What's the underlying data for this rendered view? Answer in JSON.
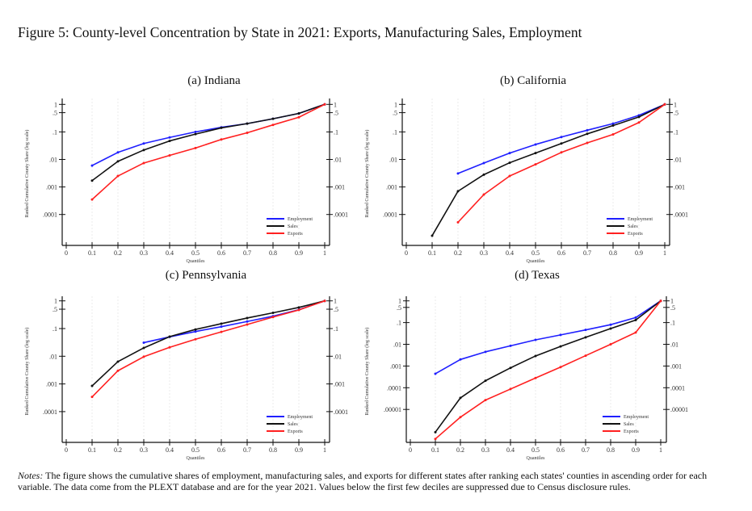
{
  "figure": {
    "title": "Figure 5: County-level Concentration by State in 2021: Exports, Manufacturing Sales, Employment",
    "notes_label": "Notes:",
    "notes_text": " The figure shows the cumulative shares of employment, manufacturing sales, and exports for different states after ranking each states' counties in ascending order for each variable. The data come from the PLEXT database and are for the year 2021. Values below the first few deciles are suppressed due to Census disclosure rules."
  },
  "colors": {
    "Employment": "#1f1fff",
    "Sales": "#111111",
    "Exports": "#ff2020"
  },
  "chart_data": [
    {
      "type": "line",
      "title": "(a) Indiana",
      "xlabel": "Quantiles",
      "ylabel": "Ranked Cumulative County Share (log scale)",
      "yscale": "log",
      "xlim": [
        0,
        1
      ],
      "ylim": [
        1e-05,
        1
      ],
      "x_ticks": [
        "0",
        "0.1",
        "0.2",
        "0.3",
        "0.4",
        "0.5",
        "0.6",
        "0.7",
        "0.8",
        "0.9",
        "1"
      ],
      "y_ticks": [
        {
          "v": 1,
          "l": "1"
        },
        {
          "v": 0.5,
          "l": ".5"
        },
        {
          "v": 0.1,
          "l": ".1"
        },
        {
          "v": 0.01,
          "l": ".01"
        },
        {
          "v": 0.001,
          "l": ".001"
        },
        {
          "v": 0.0001,
          "l": ".0001"
        }
      ],
      "legend_position": "bottom-right",
      "grid": "vertical dashed",
      "x": [
        0.1,
        0.2,
        0.3,
        0.4,
        0.5,
        0.6,
        0.7,
        0.8,
        0.9,
        1
      ],
      "series": [
        {
          "name": "Employment",
          "values": [
            0.006,
            0.018,
            0.038,
            0.063,
            0.1,
            0.147,
            0.2,
            0.3,
            0.47,
            1
          ]
        },
        {
          "name": "Sales",
          "values": [
            0.0017,
            0.0085,
            0.022,
            0.047,
            0.083,
            0.14,
            0.2,
            0.3,
            0.47,
            1
          ]
        },
        {
          "name": "Exports",
          "values": [
            0.00035,
            0.0025,
            0.0074,
            0.014,
            0.026,
            0.053,
            0.093,
            0.18,
            0.34,
            1
          ]
        }
      ]
    },
    {
      "type": "line",
      "title": "(b) California",
      "xlabel": "Quantiles",
      "ylabel": "Ranked Cumulative County Share (log scale)",
      "yscale": "log",
      "xlim": [
        0,
        1
      ],
      "ylim": [
        1e-05,
        1
      ],
      "x_ticks": [
        "0",
        "0.1",
        "0.2",
        "0.3",
        "0.4",
        "0.5",
        "0.6",
        "0.7",
        "0.8",
        "0.9",
        "1"
      ],
      "y_ticks": [
        {
          "v": 1,
          "l": "1"
        },
        {
          "v": 0.5,
          "l": ".5"
        },
        {
          "v": 0.1,
          "l": ".1"
        },
        {
          "v": 0.01,
          "l": ".01"
        },
        {
          "v": 0.001,
          "l": ".001"
        },
        {
          "v": 0.0001,
          "l": ".0001"
        }
      ],
      "legend_position": "bottom-right",
      "grid": "vertical dashed",
      "x": [
        0.1,
        0.2,
        0.3,
        0.4,
        0.5,
        0.6,
        0.7,
        0.8,
        0.9,
        1
      ],
      "series": [
        {
          "name": "Employment",
          "values": [
            null,
            0.0031,
            0.0074,
            0.017,
            0.035,
            0.065,
            0.115,
            0.2,
            0.4,
            1
          ]
        },
        {
          "name": "Sales",
          "values": [
            1.7e-05,
            0.0007,
            0.0028,
            0.0076,
            0.017,
            0.038,
            0.085,
            0.17,
            0.35,
            1
          ]
        },
        {
          "name": "Exports",
          "values": [
            null,
            5.2e-05,
            0.00053,
            0.0025,
            0.0066,
            0.018,
            0.04,
            0.081,
            0.22,
            1
          ]
        }
      ]
    },
    {
      "type": "line",
      "title": "(c) Pennsylvania",
      "xlabel": "Quantiles",
      "ylabel": "Ranked Cumulative County Share (log scale)",
      "yscale": "log",
      "xlim": [
        0,
        1
      ],
      "ylim": [
        1e-05,
        1
      ],
      "x_ticks": [
        "0",
        "0.1",
        "0.2",
        "0.3",
        "0.4",
        "0.5",
        "0.6",
        "0.7",
        "0.8",
        "0.9",
        "1"
      ],
      "y_ticks": [
        {
          "v": 1,
          "l": "1"
        },
        {
          "v": 0.5,
          "l": ".5"
        },
        {
          "v": 0.1,
          "l": ".1"
        },
        {
          "v": 0.01,
          "l": ".01"
        },
        {
          "v": 0.001,
          "l": ".001"
        },
        {
          "v": 0.0001,
          "l": ".0001"
        }
      ],
      "legend_position": "bottom-right",
      "grid": "vertical dashed",
      "x": [
        0.1,
        0.2,
        0.3,
        0.4,
        0.5,
        0.6,
        0.7,
        0.8,
        0.9,
        1
      ],
      "series": [
        {
          "name": "Employment",
          "values": [
            null,
            null,
            0.031,
            0.05,
            0.078,
            0.117,
            0.18,
            0.28,
            0.48,
            1
          ]
        },
        {
          "name": "Sales",
          "values": [
            0.00085,
            0.0064,
            0.02,
            0.051,
            0.093,
            0.15,
            0.24,
            0.37,
            0.58,
            1
          ]
        },
        {
          "name": "Exports",
          "values": [
            0.00034,
            0.003,
            0.0096,
            0.021,
            0.041,
            0.076,
            0.14,
            0.26,
            0.47,
            1
          ]
        }
      ]
    },
    {
      "type": "line",
      "title": "(d) Texas",
      "xlabel": "Quantiles",
      "ylabel": "Ranked Cumulative County Share (log scale)",
      "yscale": "log",
      "xlim": [
        0,
        1
      ],
      "ylim": [
        3e-07,
        1
      ],
      "x_ticks": [
        "0",
        "0.1",
        "0.2",
        "0.3",
        "0.4",
        "0.5",
        "0.6",
        "0.7",
        "0.8",
        "0.9",
        "1"
      ],
      "y_ticks": [
        {
          "v": 1,
          "l": "1"
        },
        {
          "v": 0.5,
          "l": ".5"
        },
        {
          "v": 0.1,
          "l": ".1"
        },
        {
          "v": 0.01,
          "l": ".01"
        },
        {
          "v": 0.001,
          "l": ".001"
        },
        {
          "v": 0.0001,
          "l": ".0001"
        },
        {
          "v": 1e-05,
          "l": ".00001"
        }
      ],
      "legend_position": "bottom-right",
      "grid": "vertical dashed",
      "x": [
        0.1,
        0.2,
        0.3,
        0.4,
        0.5,
        0.6,
        0.7,
        0.8,
        0.9,
        1
      ],
      "series": [
        {
          "name": "Employment",
          "values": [
            0.00044,
            0.002,
            0.0045,
            0.0085,
            0.016,
            0.027,
            0.046,
            0.08,
            0.17,
            1
          ]
        },
        {
          "name": "Sales",
          "values": [
            9e-07,
            3.4e-05,
            0.00021,
            0.00082,
            0.0029,
            0.008,
            0.021,
            0.053,
            0.13,
            1
          ]
        },
        {
          "name": "Exports",
          "values": [
            4.4e-07,
            4.4e-06,
            2.7e-05,
            8.7e-05,
            0.00028,
            0.00089,
            0.003,
            0.01,
            0.035,
            1
          ]
        }
      ]
    }
  ]
}
